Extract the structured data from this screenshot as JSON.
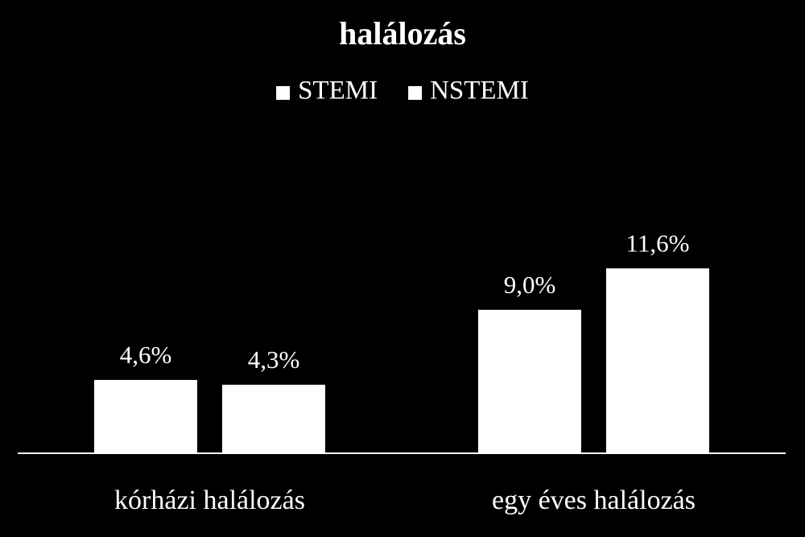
{
  "chart_data": {
    "type": "bar",
    "title": "halálozás",
    "categories": [
      "kórházi halálozás",
      "egy éves halálozás"
    ],
    "series": [
      {
        "name": "STEMI",
        "color": "#ffffff",
        "values": [
          4.6,
          9.0
        ],
        "value_labels": [
          "4,6%",
          "9,0%"
        ]
      },
      {
        "name": "NSTEMI",
        "color": "#ffffff",
        "values": [
          4.3,
          11.6
        ],
        "value_labels": [
          "4,3%",
          "11,6%"
        ]
      }
    ],
    "legend": "top"
  }
}
